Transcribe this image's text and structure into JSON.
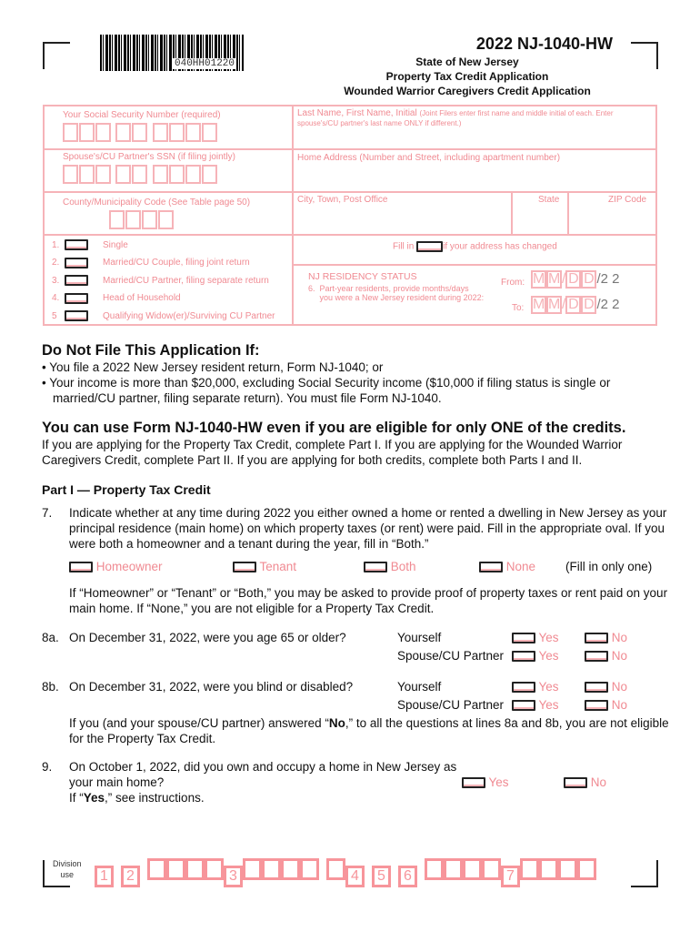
{
  "barcode": {
    "number": "040HH01220"
  },
  "header": {
    "title": "2022 NJ-1040-HW",
    "state": "State of New Jersey",
    "line1": "Property Tax Credit Application",
    "line2": "Wounded Warrior Caregivers Credit Application"
  },
  "form": {
    "ssn_label": "Your Social Security Number (required)",
    "name_label": "Last Name, First Name, Initial",
    "name_note": "(Joint Filers enter first name and middle initial of each. Enter spouse's/CU partner's last name ONLY if different.)",
    "spouse_ssn_label": "Spouse's/CU Partner's SSN (if filing jointly)",
    "address_label": "Home Address (Number and Street, including apartment number)",
    "county_label": "County/Municipality Code (See Table page 50)",
    "city_label": "City, Town, Post Office",
    "state_label": "State",
    "zip_label": "ZIP Code",
    "filing": [
      {
        "num": "1.",
        "label": "Single"
      },
      {
        "num": "2.",
        "label": "Married/CU Couple, filing joint return"
      },
      {
        "num": "3.",
        "label": "Married/CU Partner, filing separate return"
      },
      {
        "num": "4.",
        "label": "Head of Household"
      },
      {
        "num": "5",
        "label": "Qualifying Widow(er)/Surviving CU Partner"
      }
    ],
    "address_changed_pre": "Fill in",
    "address_changed_post": "if your address has changed",
    "residency_title": "NJ RESIDENCY STATUS",
    "residency_num": "6.",
    "residency_text1": "Part-year residents, provide months/days",
    "residency_text2": "you were a New Jersey resident during 2022:",
    "from_label": "From:",
    "to_label": "To:",
    "m": "M",
    "d": "D",
    "year": "2 2"
  },
  "donot": {
    "title": "Do Not File This Application If:",
    "b1": "• You file a 2022 New Jersey resident return, Form NJ-1040; or",
    "b2a": "• Your income is more than $20,000, excluding Social Security income ($10,000 if filing status is single or",
    "b2b": "married/CU partner, filing separate return). You must file Form NJ-1040."
  },
  "canuse": {
    "title": "You can use Form NJ-1040-HW even if you are eligible for only ONE of the credits.",
    "p1": "If you are applying for the Property Tax Credit, complete Part I. If you are applying for the Wounded Warrior",
    "p2": "Caregivers Credit, complete Part II. If you are applying for both credits, complete both Parts I and II."
  },
  "part1": {
    "title": "Part I — Property Tax Credit",
    "q7_num": "7.",
    "q7_l1": "Indicate whether at any time during 2022 you either owned a home or rented a dwelling in New Jersey as your",
    "q7_l2": "principal residence (main home) on which property taxes (or rent) were paid. Fill in the appropriate oval. If you",
    "q7_l3": "were both a homeowner and a tenant during the year, fill in “Both.”",
    "options": [
      "Homeowner",
      "Tenant",
      "Both",
      "None"
    ],
    "fill_one": "(Fill in only one)",
    "q7_n1": "If “Homeowner” or “Tenant” or “Both,” you may be asked to provide proof of property taxes or rent paid on your",
    "q7_n2": "main home. If “None,” you are not eligible for a Property Tax Credit.",
    "q8a_num": "8a.",
    "q8a": "On December 31, 2022, were you age 65 or older?",
    "q8b_num": "8b.",
    "q8b": "On December 31, 2022, were you blind or disabled?",
    "yourself": "Yourself",
    "spouse": "Spouse/CU Partner",
    "yes": "Yes",
    "no": "No",
    "q8_n1a": "If you (and your spouse/CU partner) answered “",
    "q8_n1b": "No",
    "q8_n1c": ",” to all the questions at lines 8a and 8b, you are not eligible",
    "q8_n2": "for the Property Tax Credit.",
    "q9_num": "9.",
    "q9_l1": "On October 1, 2022, did you own and occupy a home in New Jersey as",
    "q9_l2": "your main home?",
    "q9_l3a": "If “",
    "q9_l3b": "Yes",
    "q9_l3c": ",” see instructions."
  },
  "division": {
    "label1": "Division",
    "label2": "use",
    "groups": [
      "1",
      "2",
      "3",
      "4",
      "5",
      "6",
      "7"
    ]
  }
}
